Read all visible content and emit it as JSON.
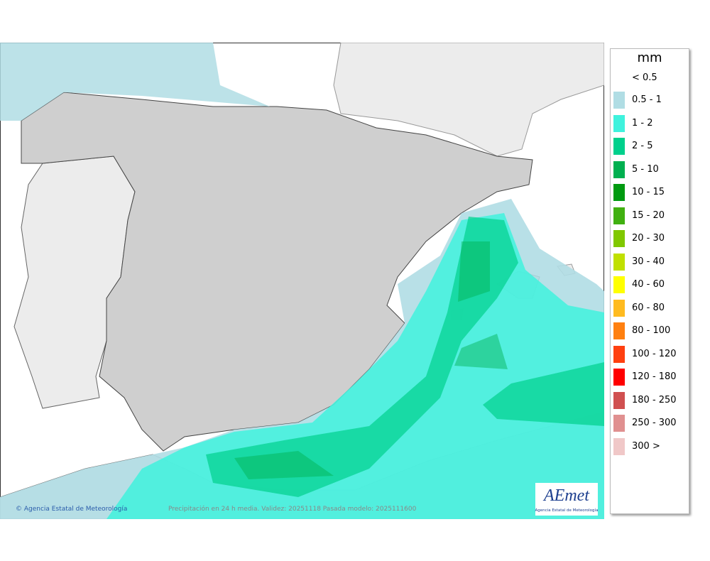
{
  "legend": {
    "title": "mm",
    "below": "< 0.5",
    "items": [
      {
        "label": "0.5 - 1",
        "color": "#b0dde4"
      },
      {
        "label": "1 - 2",
        "color": "#3ff2dd"
      },
      {
        "label": "2 - 5",
        "color": "#00d08c"
      },
      {
        "label": "5 - 10",
        "color": "#00b050"
      },
      {
        "label": "10 - 15",
        "color": "#009a10"
      },
      {
        "label": "15 - 20",
        "color": "#40b010"
      },
      {
        "label": "20 - 30",
        "color": "#80c800"
      },
      {
        "label": "30 - 40",
        "color": "#c0e000"
      },
      {
        "label": "40 - 60",
        "color": "#ffff00"
      },
      {
        "label": "60 - 80",
        "color": "#ffbb20"
      },
      {
        "label": "80 - 100",
        "color": "#ff8010"
      },
      {
        "label": "100 - 120",
        "color": "#ff4010"
      },
      {
        "label": "120 - 180",
        "color": "#ff0000"
      },
      {
        "label": "180 - 250",
        "color": "#d05050"
      },
      {
        "label": "250 - 300",
        "color": "#e09090"
      },
      {
        "label": "300 >",
        "color": "#f0c8c8"
      }
    ]
  },
  "footer": {
    "credit": "© Agencia Estatal de Meteorología",
    "caption": "Precipitación en 24 h media. Validez: 20251118 Pasada modelo: 2025111600"
  },
  "logo": {
    "name": "AEmet",
    "subtitle": "Agencia Estatal de Meteorología"
  }
}
